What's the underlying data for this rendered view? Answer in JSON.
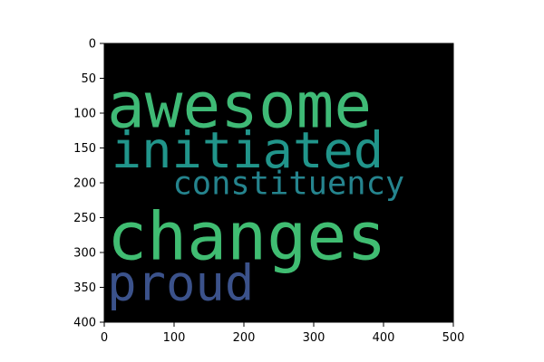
{
  "chart_data": {
    "type": "wordcloud",
    "background": "#000000",
    "xlim": [
      0,
      500
    ],
    "ylim": [
      0,
      400
    ],
    "y_inverted": true,
    "grid": false,
    "xticks": [
      0,
      100,
      200,
      300,
      400,
      500
    ],
    "yticks": [
      0,
      50,
      100,
      150,
      200,
      250,
      300,
      350,
      400
    ],
    "words": [
      {
        "text": "awesome",
        "x": 4,
        "y": 120,
        "height": 90,
        "color": "#3fba76"
      },
      {
        "text": "initiated",
        "x": 10,
        "y": 178,
        "height": 72,
        "color": "#21958b"
      },
      {
        "text": "constituency",
        "x": 98,
        "y": 216,
        "height": 46,
        "color": "#25848e"
      },
      {
        "text": "changes",
        "x": 4,
        "y": 310,
        "height": 95,
        "color": "#40bd72"
      },
      {
        "text": "proud",
        "x": 4,
        "y": 368,
        "height": 70,
        "color": "#3b528b"
      }
    ]
  }
}
